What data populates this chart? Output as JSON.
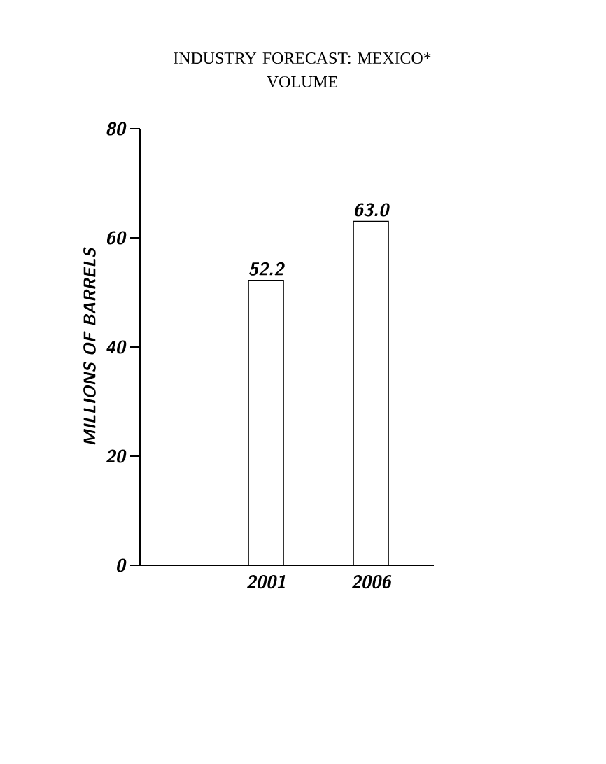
{
  "chart_data": {
    "type": "bar",
    "title": "INDUSTRY FORECAST: MEXICO*",
    "subtitle": "VOLUME",
    "ylabel": "MILLIONS OF BARRELS",
    "categories": [
      "2001",
      "2006"
    ],
    "values": [
      52.2,
      63.0
    ],
    "value_labels": [
      "52.2",
      "63.0"
    ],
    "color": "#ffffff",
    "ylim": [
      0,
      80
    ],
    "yticks": [
      0,
      20,
      40,
      60,
      80
    ],
    "grid": false
  }
}
